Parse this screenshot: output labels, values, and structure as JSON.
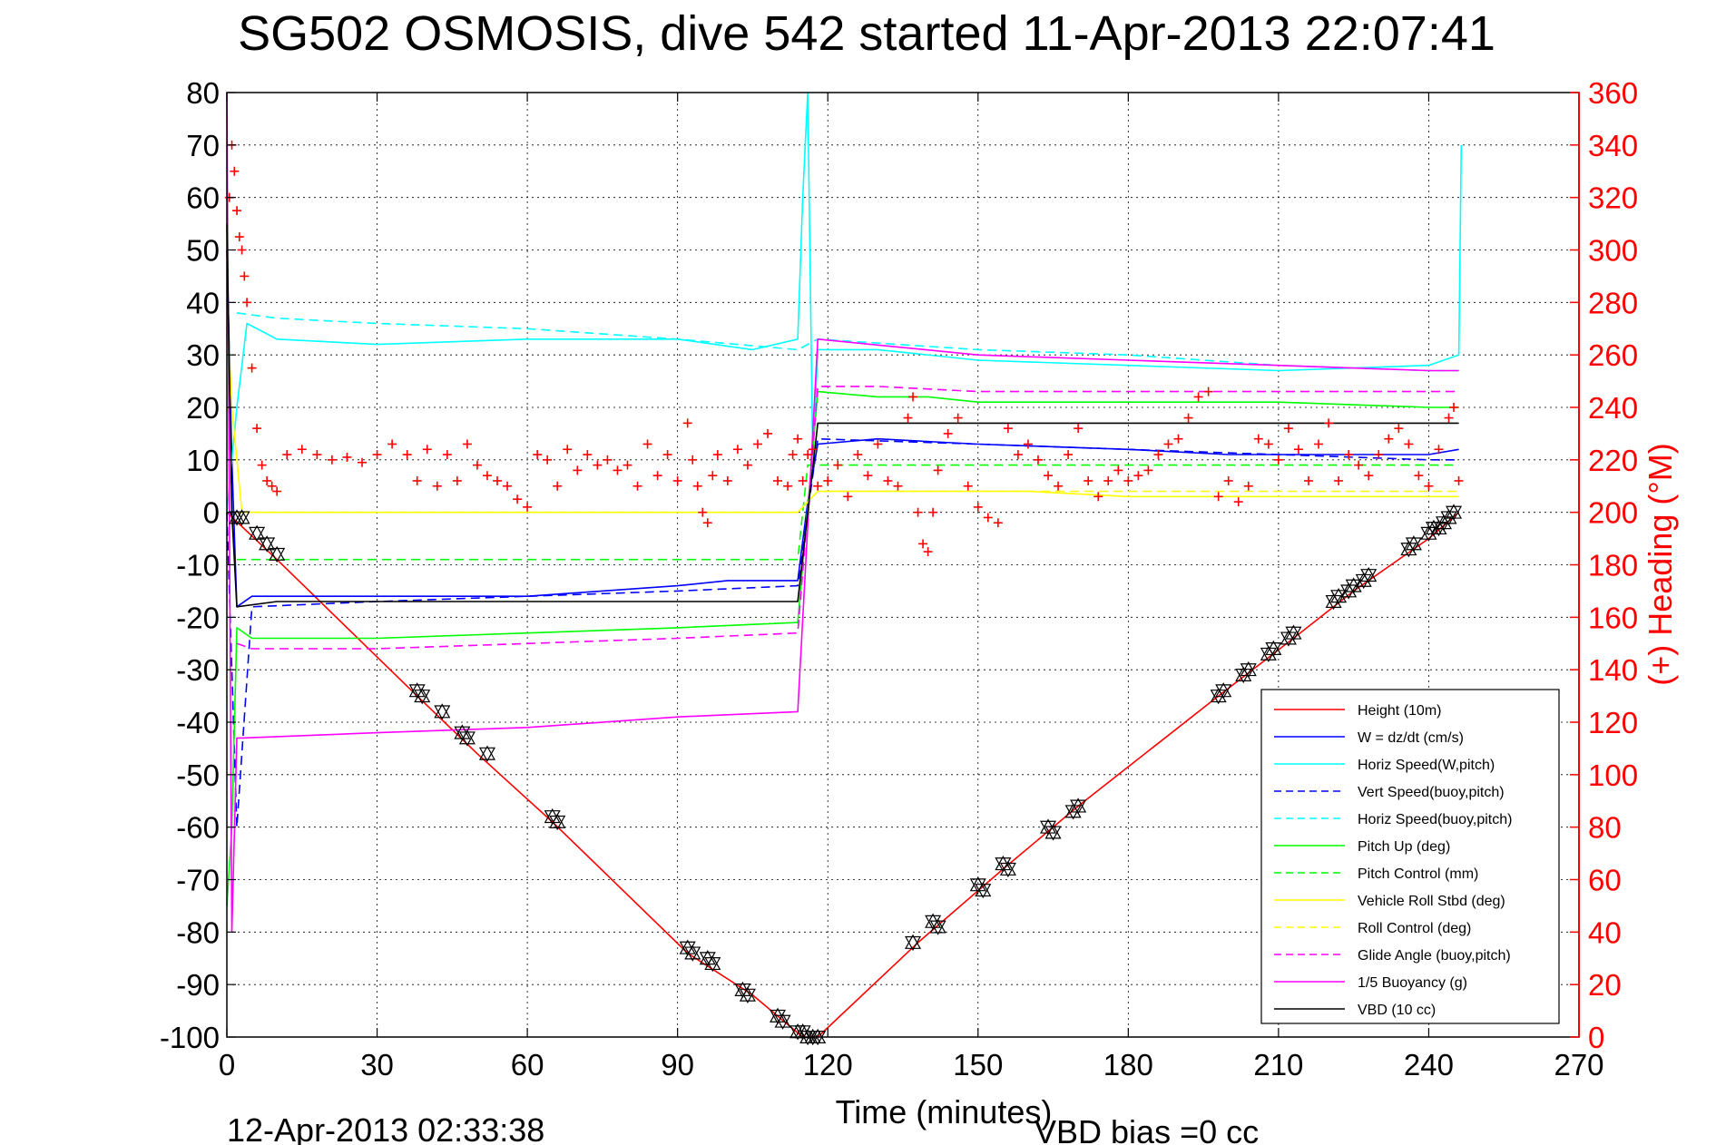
{
  "page": {
    "title": "SG502 OSMOSIS, dive 542 started 11-Apr-2013 22:07:41",
    "footer_date": "12-Apr-2013 02:33:38",
    "footer_bias": "VBD bias =0 cc"
  },
  "chart_data": {
    "type": "line",
    "title": "SG502 OSMOSIS, dive 542 started 11-Apr-2013 22:07:41",
    "xlabel": "Time (minutes)",
    "ylabel": "",
    "y2label": "(+) Heading (°M)",
    "xlim": [
      0,
      270
    ],
    "ylim": [
      -100,
      80
    ],
    "y2lim": [
      0,
      360
    ],
    "xticks": [
      "0",
      "30",
      "60",
      "90",
      "120",
      "150",
      "180",
      "210",
      "240",
      "270"
    ],
    "yticks": [
      "80",
      "70",
      "60",
      "50",
      "40",
      "30",
      "20",
      "10",
      "0",
      "-10",
      "-20",
      "-30",
      "-40",
      "-50",
      "-60",
      "-70",
      "-80",
      "-90",
      "-100"
    ],
    "y2ticks": [
      "360",
      "340",
      "320",
      "300",
      "280",
      "260",
      "240",
      "220",
      "200",
      "180",
      "160",
      "140",
      "120",
      "100",
      "80",
      "60",
      "40",
      "20",
      "0"
    ],
    "grid": true,
    "legend_position": "bottom-right",
    "colors": {
      "left_axis": "#000000",
      "right_axis": "#ff0000",
      "heading": "#ff0000"
    },
    "series": [
      {
        "name": "Height (10m)",
        "color": "#ff0000",
        "dash": "solid",
        "x": [
          0,
          10,
          38,
          50,
          65,
          92,
          105,
          115,
          118,
          138,
          155,
          170,
          198,
          213,
          225,
          240,
          246
        ],
        "y": [
          0,
          -9,
          -35,
          -46,
          -59,
          -84,
          -92,
          -100,
          -100,
          -82,
          -68,
          -56,
          -35,
          -24,
          -15,
          -5,
          0
        ]
      },
      {
        "name": "W = dz/dt (cm/s)",
        "color": "#0000ff",
        "dash": "solid",
        "x": [
          0,
          1,
          2,
          5,
          10,
          30,
          60,
          90,
          100,
          114,
          116,
          118,
          130,
          150,
          180,
          200,
          220,
          240,
          246
        ],
        "y": [
          50,
          10,
          -18,
          -16,
          -16,
          -16,
          -16,
          -14,
          -13,
          -13,
          2,
          13,
          14,
          13,
          12,
          11,
          11,
          11,
          12
        ]
      },
      {
        "name": "Horiz Speed(W,pitch)",
        "color": "#00ffff",
        "dash": "solid",
        "x": [
          0,
          2,
          4,
          10,
          30,
          60,
          90,
          105,
          114,
          115,
          116,
          117,
          118,
          130,
          150,
          180,
          210,
          240,
          246,
          246.5
        ],
        "y": [
          0,
          20,
          36,
          33,
          32,
          33,
          33,
          31,
          33,
          60,
          80,
          10,
          31,
          31,
          29,
          28,
          27,
          28,
          30,
          70
        ]
      },
      {
        "name": "Vert Speed(buoy,pitch)",
        "color": "#0000ff",
        "dash": "dashed",
        "x": [
          0,
          2,
          5,
          30,
          60,
          90,
          114,
          118,
          150,
          180,
          210,
          240,
          246
        ],
        "y": [
          0,
          -60,
          -18,
          -17,
          -16,
          -15,
          -14,
          14,
          13,
          12,
          11,
          10,
          10
        ]
      },
      {
        "name": "Horiz Speed(buoy,pitch)",
        "color": "#00ffff",
        "dash": "dashed",
        "x": [
          2,
          10,
          30,
          60,
          90,
          114,
          118,
          150,
          180,
          210,
          240,
          246
        ],
        "y": [
          38,
          37,
          36,
          35,
          33,
          31,
          33,
          31,
          30,
          28,
          27,
          27
        ]
      },
      {
        "name": "Pitch Up (deg)",
        "color": "#00ff00",
        "dash": "solid",
        "x": [
          0,
          1,
          2,
          5,
          30,
          60,
          90,
          114,
          118,
          130,
          140,
          150,
          180,
          210,
          240,
          246
        ],
        "y": [
          -75,
          -60,
          -22,
          -24,
          -24,
          -23,
          -22,
          -21,
          23,
          22,
          22,
          21,
          21,
          21,
          20,
          20
        ]
      },
      {
        "name": "Pitch Control (mm)",
        "color": "#00ff00",
        "dash": "dashed",
        "x": [
          2,
          114,
          116,
          246
        ],
        "y": [
          -9,
          -9,
          9,
          9
        ]
      },
      {
        "name": "Vehicle Roll Stbd (deg)",
        "color": "#ffff00",
        "dash": "solid",
        "x": [
          0,
          1,
          3,
          10,
          30,
          60,
          90,
          114,
          118,
          130,
          150,
          160,
          180,
          210,
          240,
          246
        ],
        "y": [
          40,
          20,
          0,
          0,
          0,
          0,
          0,
          0,
          4,
          4,
          4,
          4,
          3,
          3,
          3,
          3
        ]
      },
      {
        "name": "Roll Control (deg)",
        "color": "#ffff00",
        "dash": "dashed",
        "x": [
          2,
          114,
          118,
          246
        ],
        "y": [
          0,
          0,
          4,
          4
        ]
      },
      {
        "name": "Glide Angle (buoy,pitch)",
        "color": "#ff00ff",
        "dash": "dashed",
        "x": [
          2,
          5,
          30,
          60,
          90,
          114,
          118,
          130,
          150,
          180,
          210,
          240,
          246
        ],
        "y": [
          -25,
          -26,
          -26,
          -25,
          -24,
          -23,
          24,
          24,
          23,
          23,
          23,
          23,
          23
        ]
      },
      {
        "name": "1/5 Buoyancy (g)",
        "color": "#ff00ff",
        "dash": "solid",
        "x": [
          0,
          1,
          2,
          3,
          30,
          60,
          90,
          114,
          118,
          150,
          180,
          210,
          240,
          246
        ],
        "y": [
          80,
          -80,
          -43,
          -43,
          -42,
          -41,
          -39,
          -38,
          33,
          30,
          29,
          28,
          27,
          27
        ]
      },
      {
        "name": "VBD (10 cc)",
        "color": "#000000",
        "dash": "solid",
        "x": [
          0,
          1,
          2,
          10,
          30,
          60,
          90,
          114,
          118,
          150,
          180,
          210,
          240,
          246
        ],
        "y": [
          55,
          0,
          -18,
          -17,
          -17,
          -17,
          -17,
          -17,
          17,
          17,
          17,
          17,
          17,
          17
        ]
      }
    ],
    "heading_series": {
      "axis": "right",
      "marker": "+",
      "color": "#ff0000",
      "x": [
        0.5,
        1,
        1.5,
        2,
        2.5,
        3,
        3.5,
        4,
        5,
        6,
        7,
        8,
        9,
        10,
        12,
        15,
        18,
        21,
        24,
        27,
        30,
        33,
        36,
        38,
        40,
        42,
        44,
        46,
        48,
        50,
        52,
        54,
        56,
        58,
        60,
        62,
        64,
        66,
        68,
        70,
        72,
        74,
        76,
        78,
        80,
        82,
        84,
        86,
        88,
        90,
        92,
        93,
        94,
        95,
        96,
        97,
        98,
        100,
        102,
        104,
        106,
        108,
        110,
        112,
        113,
        114,
        115,
        116,
        117,
        118,
        120,
        122,
        124,
        126,
        128,
        130,
        132,
        134,
        136,
        137,
        138,
        139,
        140,
        141,
        142,
        144,
        146,
        148,
        150,
        152,
        154,
        156,
        158,
        160,
        162,
        164,
        166,
        168,
        170,
        172,
        174,
        176,
        178,
        180,
        182,
        184,
        186,
        188,
        190,
        192,
        194,
        196,
        198,
        200,
        202,
        204,
        206,
        208,
        210,
        212,
        214,
        216,
        218,
        220,
        222,
        224,
        226,
        228,
        230,
        232,
        234,
        236,
        238,
        240,
        242,
        244,
        245,
        246
      ],
      "y": [
        320,
        340,
        330,
        315,
        305,
        300,
        290,
        280,
        255,
        232,
        218,
        212,
        210,
        208,
        222,
        224,
        222,
        220,
        221,
        219,
        222,
        226,
        222,
        212,
        224,
        210,
        222,
        212,
        226,
        218,
        214,
        212,
        210,
        205,
        202,
        222,
        220,
        210,
        224,
        216,
        222,
        218,
        220,
        216,
        218,
        210,
        226,
        214,
        222,
        212,
        234,
        220,
        210,
        200,
        196,
        214,
        222,
        212,
        224,
        218,
        226,
        230,
        212,
        210,
        222,
        228,
        212,
        222,
        224,
        210,
        212,
        218,
        206,
        222,
        214,
        226,
        212,
        210,
        236,
        244,
        200,
        188,
        185,
        200,
        216,
        230,
        236,
        210,
        202,
        198,
        196,
        232,
        222,
        226,
        220,
        214,
        210,
        222,
        232,
        212,
        206,
        212,
        216,
        212,
        214,
        216,
        222,
        226,
        228,
        236,
        244,
        246,
        206,
        212,
        204,
        210,
        228,
        226,
        220,
        232,
        224,
        212,
        226,
        234,
        212,
        222,
        218,
        214,
        222,
        228,
        232,
        226,
        214,
        210,
        224,
        236,
        240,
        212
      ]
    },
    "marker_points": {
      "marker": "triangles",
      "color": "#000000",
      "x": [
        2,
        3,
        6,
        8,
        10,
        38,
        39,
        43,
        47,
        48,
        52,
        65,
        66,
        92,
        93,
        96,
        97,
        103,
        104,
        110,
        111,
        114,
        115,
        116,
        117,
        118,
        137,
        141,
        142,
        150,
        151,
        155,
        156,
        164,
        165,
        169,
        170,
        198,
        199,
        203,
        204,
        208,
        209,
        212,
        213,
        221,
        222,
        224,
        225,
        227,
        228,
        236,
        237,
        240,
        241,
        242,
        243,
        244,
        245
      ],
      "y": [
        -1,
        -1,
        -4,
        -6,
        -8,
        -34,
        -35,
        -38,
        -42,
        -43,
        -46,
        -58,
        -59,
        -83,
        -84,
        -85,
        -86,
        -91,
        -92,
        -96,
        -97,
        -99,
        -99,
        -100,
        -100,
        -100,
        -82,
        -78,
        -79,
        -71,
        -72,
        -67,
        -68,
        -60,
        -61,
        -57,
        -56,
        -35,
        -34,
        -31,
        -30,
        -27,
        -26,
        -24,
        -23,
        -17,
        -16,
        -15,
        -14,
        -13,
        -12,
        -7,
        -6,
        -4,
        -3,
        -3,
        -2,
        -1,
        0
      ]
    }
  }
}
